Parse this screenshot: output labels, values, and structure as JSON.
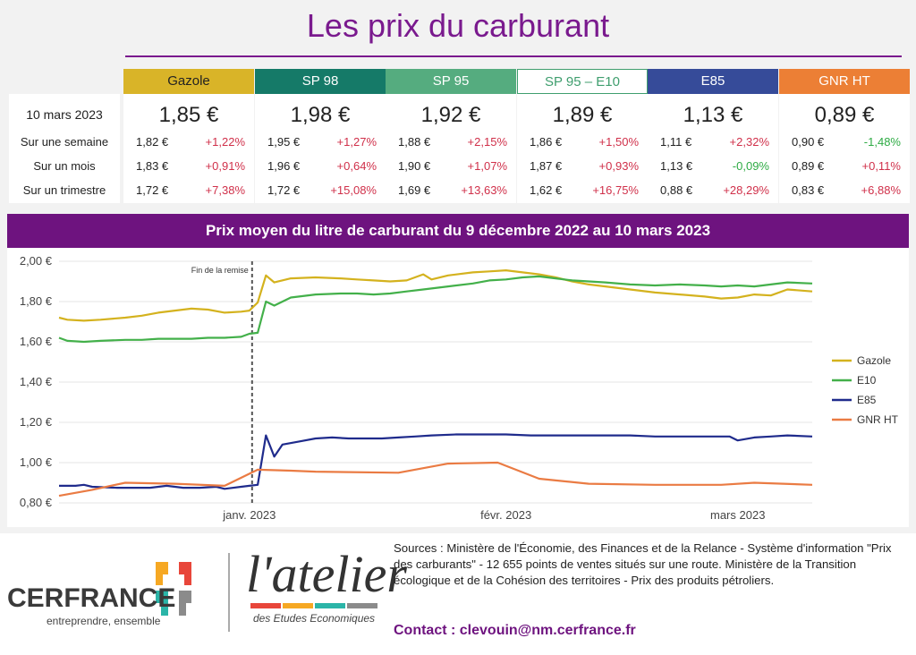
{
  "title": "Les prix du carburant",
  "table": {
    "row_labels": [
      "10 mars 2023",
      "Sur une semaine",
      "Sur un mois",
      "Sur un trimestre"
    ],
    "fuels": [
      {
        "name": "Gazole",
        "color": "#d9b428",
        "text_color": "#222222",
        "price": "1,85 €",
        "rows": [
          {
            "price": "1,82 €",
            "change": "+1,22%",
            "sign": "pos"
          },
          {
            "price": "1,83 €",
            "change": "+0,91%",
            "sign": "pos"
          },
          {
            "price": "1,72 €",
            "change": "+7,38%",
            "sign": "pos"
          }
        ]
      },
      {
        "name": "SP 98",
        "color": "#157a68",
        "text_color": "#ffffff",
        "price": "1,98 €",
        "rows": [
          {
            "price": "1,95 €",
            "change": "+1,27%",
            "sign": "pos"
          },
          {
            "price": "1,96 €",
            "change": "+0,64%",
            "sign": "pos"
          },
          {
            "price": "1,72 €",
            "change": "+15,08%",
            "sign": "pos"
          }
        ]
      },
      {
        "name": "SP 95",
        "color": "#55ac7f",
        "text_color": "#ffffff",
        "price": "1,92 €",
        "rows": [
          {
            "price": "1,88 €",
            "change": "+2,15%",
            "sign": "pos"
          },
          {
            "price": "1,90 €",
            "change": "+1,07%",
            "sign": "pos"
          },
          {
            "price": "1,69 €",
            "change": "+13,63%",
            "sign": "pos"
          }
        ]
      },
      {
        "name": "SP 95 – E10",
        "color": "#ffffff",
        "text_color": "#3f9e6e",
        "price": "1,89 €",
        "rows": [
          {
            "price": "1,86 €",
            "change": "+1,50%",
            "sign": "pos"
          },
          {
            "price": "1,87 €",
            "change": "+0,93%",
            "sign": "pos"
          },
          {
            "price": "1,62 €",
            "change": "+16,75%",
            "sign": "pos"
          }
        ]
      },
      {
        "name": "E85",
        "color": "#364b99",
        "text_color": "#ffffff",
        "price": "1,13 €",
        "rows": [
          {
            "price": "1,11 €",
            "change": "+2,32%",
            "sign": "pos"
          },
          {
            "price": "1,13 €",
            "change": "-0,09%",
            "sign": "neg"
          },
          {
            "price": "0,88 €",
            "change": "+28,29%",
            "sign": "pos"
          }
        ]
      },
      {
        "name": "GNR HT",
        "color": "#ec7f35",
        "text_color": "#ffffff",
        "price": "0,89 €",
        "rows": [
          {
            "price": "0,90 €",
            "change": "-1,48%",
            "sign": "neg"
          },
          {
            "price": "0,89 €",
            "change": "+0,11%",
            "sign": "pos"
          },
          {
            "price": "0,83 €",
            "change": "+6,88%",
            "sign": "pos"
          }
        ]
      }
    ]
  },
  "chart_data": {
    "type": "line",
    "title": "Prix moyen du litre de carburant du 9 décembre 2022 au  10 mars 2023",
    "x_ticks": [
      {
        "label": "janv. 2023",
        "date": "2023-01-01"
      },
      {
        "label": "févr. 2023",
        "date": "2023-02-01"
      },
      {
        "label": "mars 2023",
        "date": "2023-03-01"
      }
    ],
    "x_range": [
      "2022-12-09",
      "2023-03-10"
    ],
    "ylim": [
      0.8,
      2.0
    ],
    "y_ticks": [
      "0,80 €",
      "1,00 €",
      "1,20 €",
      "1,40 €",
      "1,60 €",
      "1,80 €",
      "2,00 €"
    ],
    "grid": "horizontal",
    "legend_position": "right",
    "annotation": {
      "text": "Fin de la remise",
      "date": "2023-01-01"
    },
    "series": [
      {
        "name": "Gazole",
        "color": "#d4b21e",
        "points": [
          [
            "2022-12-09",
            1.72
          ],
          [
            "2022-12-10",
            1.71
          ],
          [
            "2022-12-12",
            1.705
          ],
          [
            "2022-12-14",
            1.71
          ],
          [
            "2022-12-17",
            1.72
          ],
          [
            "2022-12-19",
            1.73
          ],
          [
            "2022-12-21",
            1.745
          ],
          [
            "2022-12-23",
            1.755
          ],
          [
            "2022-12-25",
            1.765
          ],
          [
            "2022-12-27",
            1.76
          ],
          [
            "2022-12-29",
            1.745
          ],
          [
            "2022-12-31",
            1.75
          ],
          [
            "2023-01-01",
            1.755
          ],
          [
            "2023-01-02",
            1.795
          ],
          [
            "2023-01-03",
            1.93
          ],
          [
            "2023-01-04",
            1.895
          ],
          [
            "2023-01-06",
            1.915
          ],
          [
            "2023-01-09",
            1.92
          ],
          [
            "2023-01-12",
            1.915
          ],
          [
            "2023-01-14",
            1.91
          ],
          [
            "2023-01-16",
            1.905
          ],
          [
            "2023-01-18",
            1.9
          ],
          [
            "2023-01-20",
            1.905
          ],
          [
            "2023-01-22",
            1.935
          ],
          [
            "2023-01-23",
            1.91
          ],
          [
            "2023-01-25",
            1.93
          ],
          [
            "2023-01-28",
            1.945
          ],
          [
            "2023-01-30",
            1.95
          ],
          [
            "2023-02-01",
            1.955
          ],
          [
            "2023-02-03",
            1.945
          ],
          [
            "2023-02-05",
            1.935
          ],
          [
            "2023-02-07",
            1.92
          ],
          [
            "2023-02-09",
            1.9
          ],
          [
            "2023-02-11",
            1.885
          ],
          [
            "2023-02-13",
            1.875
          ],
          [
            "2023-02-16",
            1.86
          ],
          [
            "2023-02-19",
            1.845
          ],
          [
            "2023-02-22",
            1.835
          ],
          [
            "2023-02-25",
            1.825
          ],
          [
            "2023-02-27",
            1.815
          ],
          [
            "2023-03-01",
            1.82
          ],
          [
            "2023-03-03",
            1.835
          ],
          [
            "2023-03-05",
            1.83
          ],
          [
            "2023-03-07",
            1.86
          ],
          [
            "2023-03-10",
            1.85
          ]
        ]
      },
      {
        "name": "E10",
        "color": "#43b04a",
        "points": [
          [
            "2022-12-09",
            1.62
          ],
          [
            "2022-12-10",
            1.605
          ],
          [
            "2022-12-12",
            1.6
          ],
          [
            "2022-12-14",
            1.605
          ],
          [
            "2022-12-17",
            1.61
          ],
          [
            "2022-12-19",
            1.61
          ],
          [
            "2022-12-21",
            1.615
          ],
          [
            "2022-12-23",
            1.615
          ],
          [
            "2022-12-25",
            1.615
          ],
          [
            "2022-12-27",
            1.62
          ],
          [
            "2022-12-29",
            1.62
          ],
          [
            "2022-12-31",
            1.625
          ],
          [
            "2023-01-01",
            1.64
          ],
          [
            "2023-01-02",
            1.645
          ],
          [
            "2023-01-03",
            1.8
          ],
          [
            "2023-01-04",
            1.78
          ],
          [
            "2023-01-06",
            1.82
          ],
          [
            "2023-01-09",
            1.835
          ],
          [
            "2023-01-12",
            1.84
          ],
          [
            "2023-01-14",
            1.84
          ],
          [
            "2023-01-16",
            1.835
          ],
          [
            "2023-01-18",
            1.84
          ],
          [
            "2023-01-20",
            1.85
          ],
          [
            "2023-01-22",
            1.86
          ],
          [
            "2023-01-25",
            1.875
          ],
          [
            "2023-01-28",
            1.89
          ],
          [
            "2023-01-30",
            1.905
          ],
          [
            "2023-02-01",
            1.91
          ],
          [
            "2023-02-03",
            1.92
          ],
          [
            "2023-02-05",
            1.925
          ],
          [
            "2023-02-07",
            1.915
          ],
          [
            "2023-02-09",
            1.905
          ],
          [
            "2023-02-11",
            1.9
          ],
          [
            "2023-02-13",
            1.895
          ],
          [
            "2023-02-16",
            1.885
          ],
          [
            "2023-02-19",
            1.88
          ],
          [
            "2023-02-22",
            1.885
          ],
          [
            "2023-02-25",
            1.88
          ],
          [
            "2023-02-27",
            1.875
          ],
          [
            "2023-03-01",
            1.88
          ],
          [
            "2023-03-03",
            1.875
          ],
          [
            "2023-03-05",
            1.885
          ],
          [
            "2023-03-07",
            1.895
          ],
          [
            "2023-03-10",
            1.89
          ]
        ]
      },
      {
        "name": "E85",
        "color": "#1f2b8c",
        "points": [
          [
            "2022-12-09",
            0.885
          ],
          [
            "2022-12-11",
            0.885
          ],
          [
            "2022-12-12",
            0.89
          ],
          [
            "2022-12-13",
            0.88
          ],
          [
            "2022-12-16",
            0.875
          ],
          [
            "2022-12-18",
            0.875
          ],
          [
            "2022-12-20",
            0.875
          ],
          [
            "2022-12-22",
            0.885
          ],
          [
            "2022-12-24",
            0.875
          ],
          [
            "2022-12-26",
            0.875
          ],
          [
            "2022-12-28",
            0.88
          ],
          [
            "2022-12-29",
            0.87
          ],
          [
            "2022-12-31",
            0.88
          ],
          [
            "2023-01-01",
            0.885
          ],
          [
            "2023-01-02",
            0.89
          ],
          [
            "2023-01-03",
            1.135
          ],
          [
            "2023-01-04",
            1.03
          ],
          [
            "2023-01-05",
            1.09
          ],
          [
            "2023-01-07",
            1.105
          ],
          [
            "2023-01-09",
            1.12
          ],
          [
            "2023-01-11",
            1.125
          ],
          [
            "2023-01-13",
            1.12
          ],
          [
            "2023-01-15",
            1.12
          ],
          [
            "2023-01-17",
            1.12
          ],
          [
            "2023-01-19",
            1.125
          ],
          [
            "2023-01-21",
            1.13
          ],
          [
            "2023-01-23",
            1.135
          ],
          [
            "2023-01-26",
            1.14
          ],
          [
            "2023-01-29",
            1.14
          ],
          [
            "2023-02-01",
            1.14
          ],
          [
            "2023-02-04",
            1.135
          ],
          [
            "2023-02-07",
            1.135
          ],
          [
            "2023-02-10",
            1.135
          ],
          [
            "2023-02-13",
            1.135
          ],
          [
            "2023-02-16",
            1.135
          ],
          [
            "2023-02-19",
            1.13
          ],
          [
            "2023-02-22",
            1.13
          ],
          [
            "2023-02-25",
            1.13
          ],
          [
            "2023-02-28",
            1.13
          ],
          [
            "2023-03-01",
            1.11
          ],
          [
            "2023-03-03",
            1.125
          ],
          [
            "2023-03-05",
            1.13
          ],
          [
            "2023-03-07",
            1.135
          ],
          [
            "2023-03-10",
            1.13
          ]
        ]
      },
      {
        "name": "GNR HT",
        "color": "#ea7b43",
        "points": [
          [
            "2022-12-09",
            0.835
          ],
          [
            "2022-12-13",
            0.865
          ],
          [
            "2022-12-17",
            0.9
          ],
          [
            "2022-12-23",
            0.895
          ],
          [
            "2022-12-29",
            0.885
          ],
          [
            "2023-01-02",
            0.965
          ],
          [
            "2023-01-06",
            0.96
          ],
          [
            "2023-01-09",
            0.955
          ],
          [
            "2023-01-19",
            0.95
          ],
          [
            "2023-01-25",
            0.995
          ],
          [
            "2023-01-31",
            1.0
          ],
          [
            "2023-02-05",
            0.92
          ],
          [
            "2023-02-11",
            0.895
          ],
          [
            "2023-02-19",
            0.89
          ],
          [
            "2023-02-27",
            0.89
          ],
          [
            "2023-03-03",
            0.9
          ],
          [
            "2023-03-10",
            0.89
          ]
        ]
      }
    ]
  },
  "footer": {
    "brand": "CERFRANCE",
    "brand_tagline": "entreprendre, ensemble",
    "atelier": "l'atelier",
    "atelier_tagline": "des Etudes Economiques",
    "sources": "Sources : Ministère de l'Économie, des Finances et de la Relance - Système d'information \"Prix des carburants\" - 12 655 points de ventes situés sur une route. Ministère de la Transition écologique et de la Cohésion des territoires - Prix des produits pétroliers.",
    "contact": "Contact : clevouin@nm.cerfrance.fr"
  }
}
